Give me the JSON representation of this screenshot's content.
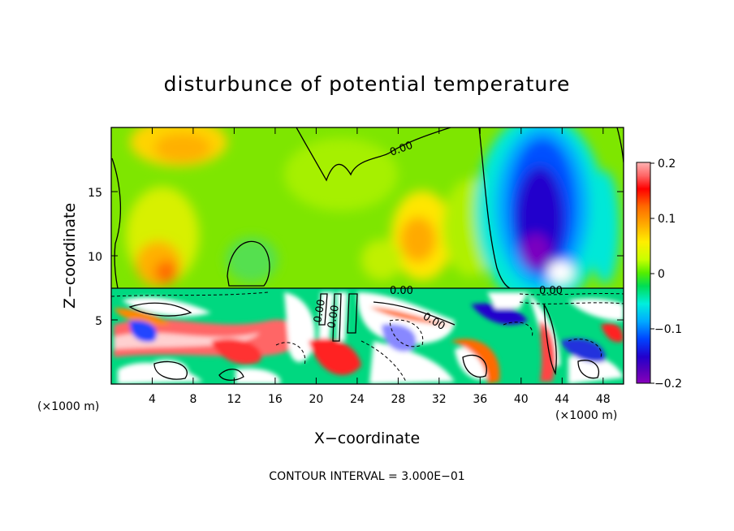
{
  "chart_data": {
    "type": "heatmap",
    "title": "disturbunce of potential temperature",
    "xlabel": "X−coordinate",
    "ylabel": "Z−coordinate",
    "x_unit": "(×1000 m)",
    "y_unit": "(×1000 m)",
    "x_ticks": [
      "4",
      "8",
      "12",
      "16",
      "20",
      "24",
      "28",
      "32",
      "36",
      "40",
      "44",
      "48"
    ],
    "y_ticks": [
      "5",
      "10",
      "15"
    ],
    "xlim": [
      0,
      50
    ],
    "ylim": [
      0,
      20
    ],
    "colorbar": {
      "ticks": [
        "0.2",
        "0.1",
        "0",
        "−0.1",
        "−0.2"
      ],
      "range": [
        -0.2,
        0.2
      ]
    },
    "contour_labels": [
      "0.00",
      "0.00",
      "0.00",
      "0.00",
      "0.00",
      "0.00"
    ],
    "contour_interval_text": "CONTOUR INTERVAL = 3.000E−01",
    "grid": false
  }
}
